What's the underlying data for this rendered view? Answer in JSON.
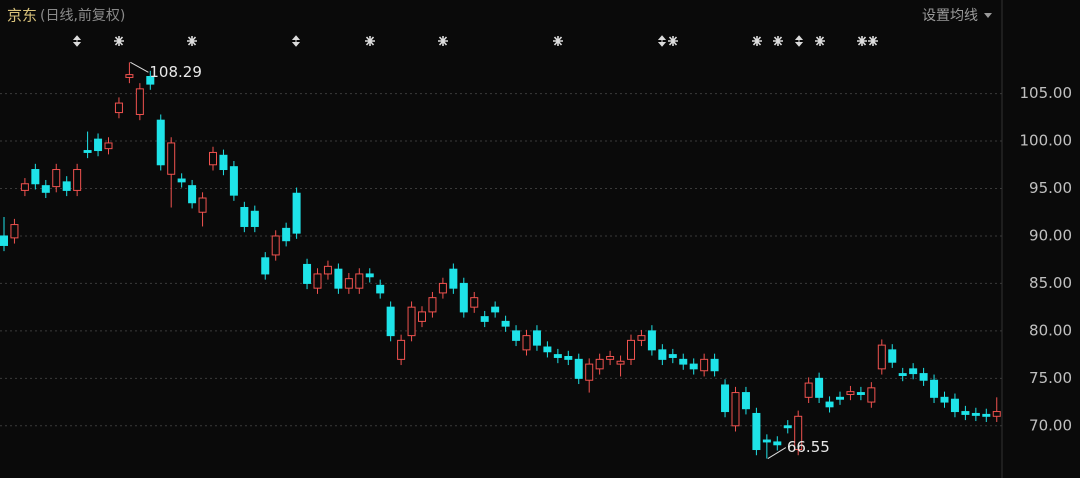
{
  "chart_data": {
    "type": "candlestick",
    "title": "京东",
    "subtitle": "(日线,前复权)",
    "settings_button": "设置均线",
    "series": [
      {
        "up_color": "#f0524f",
        "down_color": "#1ee3e8",
        "open": [
          90,
          89.8,
          94.8,
          97,
          95.3,
          95.2,
          95.7,
          94.8,
          99,
          100.2,
          99.2,
          103,
          106.7,
          102.8,
          106.8,
          102.2,
          96.5,
          96,
          95.3,
          92.5,
          97.5,
          98.5,
          97.3,
          93,
          92.6,
          87.7,
          88,
          90.8,
          94.5,
          87,
          84.5,
          86,
          86.5,
          84.5,
          84.5,
          86,
          84.8,
          82.5,
          77,
          79.5,
          81,
          82,
          84,
          86.5,
          85,
          82.5,
          81.5,
          82.5,
          81,
          80,
          78,
          80,
          78.3,
          77.5,
          77.3,
          77,
          74.8,
          76,
          77,
          76.5,
          77,
          79,
          80,
          78,
          77.5,
          77,
          76.5,
          75.8,
          77,
          74.3,
          70,
          73.5,
          71.3,
          68.5,
          68.3,
          70,
          67.5,
          73,
          75,
          72.5,
          73,
          73.3,
          73.5,
          72.5,
          76,
          78,
          75.5,
          76,
          75.5,
          74.8,
          73,
          72.8,
          71.5,
          71.3,
          71.2,
          71
        ],
        "high": [
          92,
          91.8,
          96.1,
          97.6,
          95.9,
          97.6,
          96.3,
          97.6,
          101,
          100.8,
          100.4,
          104.6,
          108.29,
          106.1,
          107.4,
          102.8,
          100.4,
          96.6,
          95.9,
          94.6,
          99.4,
          99.1,
          97.9,
          93.6,
          93.2,
          88.3,
          90.6,
          91.4,
          95.1,
          87.6,
          86.6,
          87.4,
          87.1,
          86.1,
          86.6,
          86.6,
          85.4,
          83.1,
          79.6,
          83.1,
          82.6,
          84.1,
          85.6,
          87.1,
          85.6,
          84.1,
          82.1,
          83.1,
          81.6,
          80.6,
          80.1,
          80.6,
          78.9,
          78.1,
          77.9,
          77.6,
          77.1,
          77.6,
          77.9,
          77.4,
          79.6,
          80.1,
          80.6,
          78.6,
          78.1,
          77.6,
          77.1,
          77.6,
          77.6,
          74.9,
          74.1,
          74.1,
          71.9,
          69.1,
          68.9,
          70.6,
          71.6,
          75.1,
          75.6,
          73.1,
          73.6,
          74.2,
          74.1,
          74.6,
          79.1,
          78.6,
          76.1,
          76.6,
          76.1,
          75.4,
          73.6,
          73.4,
          72.1,
          71.9,
          71.8,
          73
        ],
        "low": [
          88.4,
          89.2,
          94.2,
          94.9,
          94,
          94.6,
          94.2,
          94.2,
          98.2,
          98.4,
          98.6,
          102.4,
          106.1,
          102.2,
          105.4,
          96.9,
          93,
          95.1,
          92.9,
          91,
          96.9,
          96.4,
          93.7,
          90.4,
          90.4,
          85.4,
          87.4,
          88.9,
          89.7,
          84.4,
          83.9,
          85.4,
          83.9,
          83.9,
          83.9,
          85.1,
          83.4,
          78.9,
          76.4,
          78.9,
          80.4,
          81.4,
          83.4,
          83.9,
          81.4,
          81.9,
          80.4,
          81.4,
          79.9,
          78.4,
          77.4,
          77.9,
          77.2,
          76.6,
          76.4,
          74.4,
          73.5,
          75.4,
          76.4,
          75.2,
          76.4,
          78.4,
          77.4,
          76.4,
          76.6,
          75.9,
          75.4,
          75.2,
          75.2,
          70.9,
          69.4,
          71.2,
          66.9,
          66.55,
          67.4,
          69.2,
          66.9,
          72.4,
          72.4,
          71.4,
          72.2,
          72.7,
          72.7,
          71.9,
          75.4,
          76.1,
          74.7,
          74.9,
          74.2,
          72.4,
          71.9,
          70.9,
          70.6,
          70.5,
          70.4,
          70.4
        ],
        "close": [
          89,
          91.2,
          95.5,
          95.5,
          94.6,
          97,
          94.8,
          97,
          98.8,
          99,
          99.8,
          104,
          107,
          105.5,
          106,
          97.5,
          99.8,
          95.7,
          93.5,
          94,
          98.8,
          97,
          94.3,
          91,
          91,
          86,
          90,
          89.5,
          90.3,
          85,
          86,
          86.8,
          84.5,
          85.5,
          86,
          85.7,
          84,
          79.5,
          79,
          82.5,
          82,
          83.5,
          85,
          84.5,
          82,
          83.5,
          81,
          82,
          80.5,
          79,
          79.5,
          78.5,
          77.8,
          77.2,
          77,
          75,
          76.5,
          77,
          77.3,
          76.8,
          79,
          79.5,
          78,
          77,
          77.2,
          76.5,
          76,
          77,
          75.8,
          71.5,
          73.5,
          71.8,
          67.5,
          68.3,
          68,
          69.8,
          71,
          74.5,
          73,
          72,
          72.8,
          73.6,
          73.3,
          74,
          78.5,
          76.7,
          75.3,
          75.5,
          74.8,
          73,
          72.5,
          71.5,
          71.2,
          71.1,
          71,
          71.5
        ]
      }
    ],
    "annotations": [
      {
        "text": "108.29",
        "index": 12
      },
      {
        "text": "66.55",
        "index": 73
      }
    ],
    "ylim": [
      64.5,
      111.7
    ],
    "yticks": [
      {
        "value": 70,
        "label": "70.00"
      },
      {
        "value": 75,
        "label": "75.00"
      },
      {
        "value": 80,
        "label": "80.00"
      },
      {
        "value": 85,
        "label": "85.00"
      },
      {
        "value": 90,
        "label": "90.00"
      },
      {
        "value": 95,
        "label": "95.00"
      },
      {
        "value": 100,
        "label": "100.00"
      },
      {
        "value": 105,
        "label": "105.00"
      }
    ],
    "grid": true
  }
}
